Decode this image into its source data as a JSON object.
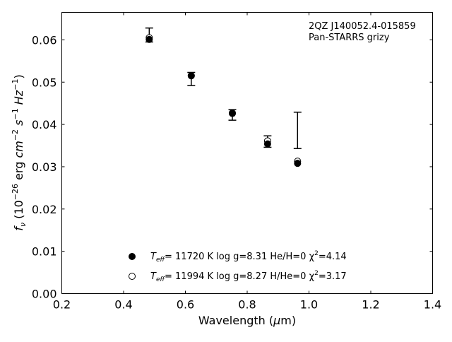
{
  "chart_data": {
    "type": "scatter",
    "annotation": [
      "2QZ J140052.4-015859",
      "Pan-STARRS grizy"
    ],
    "xlabel": "Wavelength (μm)",
    "ylabel": "f_ν (10^-26 erg cm^-2 s^-1 Hz^-1)",
    "xlim": [
      0.2,
      1.4
    ],
    "ylim": [
      0.0,
      0.0665
    ],
    "x_ticks": [
      "0.2",
      "0.4",
      "0.6",
      "0.8",
      "1.0",
      "1.2",
      "1.4"
    ],
    "y_ticks": [
      "0.00",
      "0.01",
      "0.02",
      "0.03",
      "0.04",
      "0.05",
      "0.06"
    ],
    "grid": false,
    "legend_position": "bottom-center",
    "observed": [
      {
        "x": 0.483,
        "y": 0.0611,
        "yerr_low": 0.0595,
        "yerr_high": 0.0628
      },
      {
        "x": 0.619,
        "y": 0.0516,
        "yerr_low": 0.0492,
        "yerr_high": 0.0523
      },
      {
        "x": 0.752,
        "y": 0.0425,
        "yerr_low": 0.041,
        "yerr_high": 0.0435
      },
      {
        "x": 0.866,
        "y": 0.0357,
        "yerr_low": 0.0346,
        "yerr_high": 0.0373
      },
      {
        "x": 0.963,
        "y": 0.0386,
        "yerr_low": 0.0343,
        "yerr_high": 0.0429
      }
    ],
    "series": [
      {
        "name": "Teff= 11720 K  log g=8.31  He/H=0  χ²=4.14",
        "legend": {
          "T": "T",
          "eff": "eff",
          "body": "= 11720 K  log g=8.31  He/H=0  χ",
          "chi_sup": "2",
          "tail": "=4.14"
        },
        "marker": "filled",
        "x": [
          0.483,
          0.619,
          0.752,
          0.866,
          0.963
        ],
        "y": [
          0.0601,
          0.0515,
          0.0426,
          0.0354,
          0.0308
        ]
      },
      {
        "name": "Teff= 11994 K  log g=8.27  H/He=0  χ²=3.17",
        "legend": {
          "T": "T",
          "eff": "eff",
          "body": "= 11994 K  log g=8.27  H/He=0  χ",
          "chi_sup": "2",
          "tail": "=3.17"
        },
        "marker": "open",
        "x": [
          0.483,
          0.619,
          0.752,
          0.866,
          0.963
        ],
        "y": [
          0.0605,
          0.0515,
          0.0427,
          0.0361,
          0.0313
        ]
      }
    ]
  }
}
